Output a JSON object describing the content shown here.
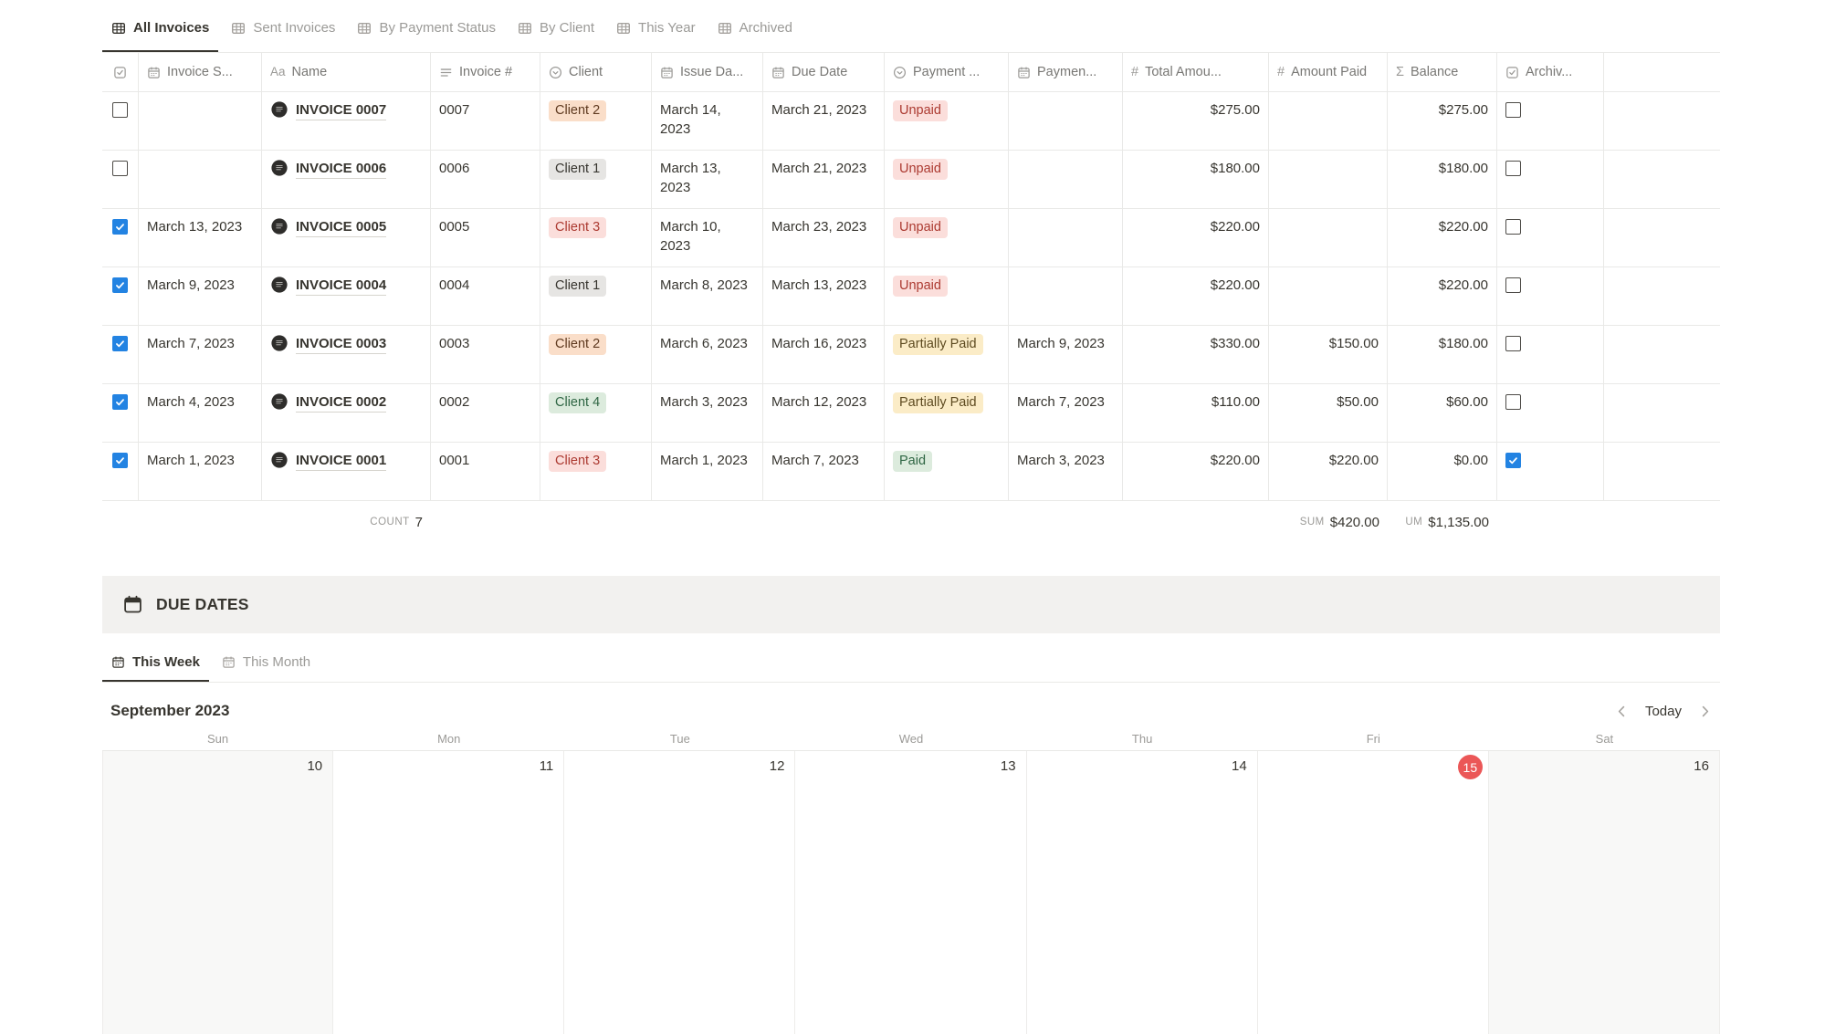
{
  "view_tabs": [
    {
      "label": "All Invoices",
      "active": true
    },
    {
      "label": "Sent Invoices",
      "active": false
    },
    {
      "label": "By Payment Status",
      "active": false
    },
    {
      "label": "By Client",
      "active": false
    },
    {
      "label": "This Year",
      "active": false
    },
    {
      "label": "Archived",
      "active": false
    }
  ],
  "table": {
    "columns": [
      {
        "key": "select",
        "label": "",
        "icon": "checkbox"
      },
      {
        "key": "invoice-sent",
        "label": "Invoice S...",
        "icon": "calendar"
      },
      {
        "key": "name",
        "label": "Name",
        "icon": "aa"
      },
      {
        "key": "invoice-number",
        "label": "Invoice #",
        "icon": "text"
      },
      {
        "key": "client",
        "label": "Client",
        "icon": "select"
      },
      {
        "key": "issue-date",
        "label": "Issue Da...",
        "icon": "calendar"
      },
      {
        "key": "due-date",
        "label": "Due Date",
        "icon": "calendar"
      },
      {
        "key": "payment-status",
        "label": "Payment ...",
        "icon": "select"
      },
      {
        "key": "payment-date",
        "label": "Paymen...",
        "icon": "calendar"
      },
      {
        "key": "total-amount",
        "label": "Total Amou...",
        "icon": "hash"
      },
      {
        "key": "amount-paid",
        "label": "Amount Paid",
        "icon": "hash"
      },
      {
        "key": "balance",
        "label": "Balance",
        "icon": "sigma"
      },
      {
        "key": "archived",
        "label": "Archiv...",
        "icon": "checkbox"
      }
    ],
    "rows": [
      {
        "selected": false,
        "invoice_sent": "",
        "name": "INVOICE 0007",
        "invoice_number": "0007",
        "client": {
          "label": "Client 2",
          "color": "orange"
        },
        "issue_date": "March 14, 2023",
        "due_date": "March 21, 2023",
        "payment_status": {
          "label": "Unpaid",
          "color": "red"
        },
        "payment_date": "",
        "total_amount": "$275.00",
        "amount_paid": "",
        "balance": "$275.00",
        "archived": false
      },
      {
        "selected": false,
        "invoice_sent": "",
        "name": "INVOICE 0006",
        "invoice_number": "0006",
        "client": {
          "label": "Client 1",
          "color": "gray"
        },
        "issue_date": "March 13, 2023",
        "due_date": "March 21, 2023",
        "payment_status": {
          "label": "Unpaid",
          "color": "red"
        },
        "payment_date": "",
        "total_amount": "$180.00",
        "amount_paid": "",
        "balance": "$180.00",
        "archived": false
      },
      {
        "selected": true,
        "invoice_sent": "March 13, 2023",
        "name": "INVOICE 0005",
        "invoice_number": "0005",
        "client": {
          "label": "Client 3",
          "color": "red"
        },
        "issue_date": "March 10, 2023",
        "due_date": "March 23, 2023",
        "payment_status": {
          "label": "Unpaid",
          "color": "red"
        },
        "payment_date": "",
        "total_amount": "$220.00",
        "amount_paid": "",
        "balance": "$220.00",
        "archived": false
      },
      {
        "selected": true,
        "invoice_sent": "March 9, 2023",
        "name": "INVOICE 0004",
        "invoice_number": "0004",
        "client": {
          "label": "Client 1",
          "color": "gray"
        },
        "issue_date": "March 8, 2023",
        "due_date": "March 13, 2023",
        "payment_status": {
          "label": "Unpaid",
          "color": "red"
        },
        "payment_date": "",
        "total_amount": "$220.00",
        "amount_paid": "",
        "balance": "$220.00",
        "archived": false
      },
      {
        "selected": true,
        "invoice_sent": "March 7, 2023",
        "name": "INVOICE 0003",
        "invoice_number": "0003",
        "client": {
          "label": "Client 2",
          "color": "orange"
        },
        "issue_date": "March 6, 2023",
        "due_date": "March 16, 2023",
        "payment_status": {
          "label": "Partially Paid",
          "color": "yellow"
        },
        "payment_date": "March 9, 2023",
        "total_amount": "$330.00",
        "amount_paid": "$150.00",
        "balance": "$180.00",
        "archived": false
      },
      {
        "selected": true,
        "invoice_sent": "March 4, 2023",
        "name": "INVOICE 0002",
        "invoice_number": "0002",
        "client": {
          "label": "Client 4",
          "color": "green"
        },
        "issue_date": "March 3, 2023",
        "due_date": "March 12, 2023",
        "payment_status": {
          "label": "Partially Paid",
          "color": "yellow"
        },
        "payment_date": "March 7, 2023",
        "total_amount": "$110.00",
        "amount_paid": "$50.00",
        "balance": "$60.00",
        "archived": false
      },
      {
        "selected": true,
        "invoice_sent": "March 1, 2023",
        "name": "INVOICE 0001",
        "invoice_number": "0001",
        "client": {
          "label": "Client 3",
          "color": "red"
        },
        "issue_date": "March 1, 2023",
        "due_date": "March 7, 2023",
        "payment_status": {
          "label": "Paid",
          "color": "green"
        },
        "payment_date": "March 3, 2023",
        "total_amount": "$220.00",
        "amount_paid": "$220.00",
        "balance": "$0.00",
        "archived": true
      }
    ],
    "footer": {
      "count_label": "COUNT",
      "count_value": "7",
      "sum_label": "SUM",
      "sum_value": "$420.00",
      "balance_label": "UM",
      "balance_value": "$1,135.00"
    }
  },
  "due_dates": {
    "title": "DUE DATES",
    "tabs": [
      {
        "label": "This Week",
        "active": true
      },
      {
        "label": "This Month",
        "active": false
      }
    ],
    "calendar": {
      "month_label": "September 2023",
      "today_label": "Today",
      "weekdays": [
        "Sun",
        "Mon",
        "Tue",
        "Wed",
        "Thu",
        "Fri",
        "Sat"
      ],
      "days": [
        {
          "day": "10",
          "weekend": true,
          "today": false
        },
        {
          "day": "11",
          "weekend": false,
          "today": false
        },
        {
          "day": "12",
          "weekend": false,
          "today": false
        },
        {
          "day": "13",
          "weekend": false,
          "today": false
        },
        {
          "day": "14",
          "weekend": false,
          "today": false
        },
        {
          "day": "15",
          "weekend": false,
          "today": true
        },
        {
          "day": "16",
          "weekend": true,
          "today": false
        }
      ]
    }
  },
  "colors": {
    "accent_blue": "#2383e2",
    "today_red": "#eb5757",
    "border": "#e9e9e7",
    "text_primary": "#37352f",
    "text_secondary": "#787774",
    "tag_orange_bg": "#fadec9",
    "tag_gray_bg": "#e6e5e3",
    "tag_red_bg": "#fbdedb",
    "tag_yellow_bg": "#fbecc7",
    "tag_green_bg": "#dcebdd",
    "banner_bg": "#f2f1ef"
  }
}
